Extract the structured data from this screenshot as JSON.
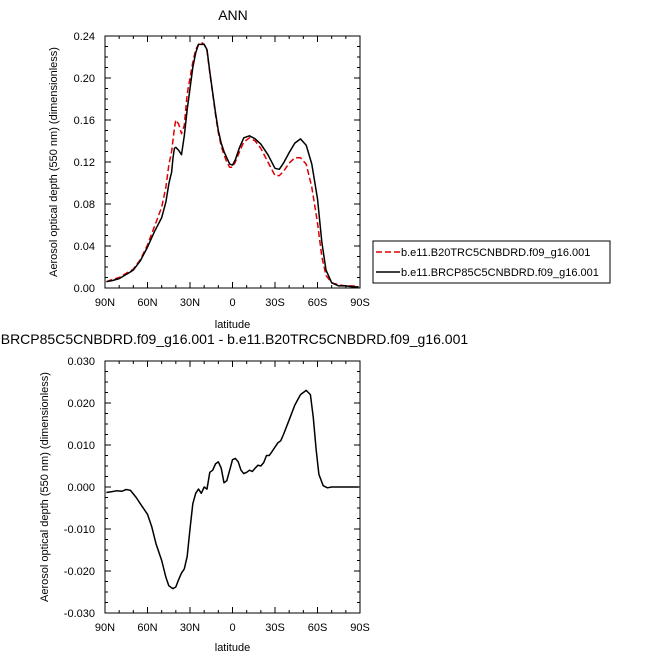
{
  "chart_data": [
    {
      "type": "line",
      "title": "ANN",
      "xlabel": "latitude",
      "ylabel": "Aerosol optical depth (550 nm) (dimensionless)",
      "x_domain": [
        90,
        -90
      ],
      "x_ticks": [
        90,
        60,
        30,
        0,
        -30,
        -60,
        -90
      ],
      "x_tick_labels": [
        "90N",
        "60N",
        "30N",
        "0",
        "30S",
        "60S",
        "90S"
      ],
      "ylim": [
        0,
        0.24
      ],
      "y_ticks": [
        0,
        0.04,
        0.08,
        0.12,
        0.16,
        0.2,
        0.24
      ],
      "y_tick_labels": [
        "0.00",
        "0.04",
        "0.08",
        "0.12",
        "0.16",
        "0.20",
        "0.24"
      ],
      "legend_position": "right",
      "series": [
        {
          "name": "b.e11.B20TRC5CNBDRD.f09_g16.001",
          "color": "#e00000",
          "dash": true,
          "x": [
            89,
            85,
            80,
            75,
            70,
            65,
            60,
            55,
            50,
            47,
            45,
            43,
            42,
            41,
            40,
            38,
            36,
            34,
            32,
            30,
            28,
            26,
            24,
            22,
            20,
            18,
            16,
            14,
            12,
            10,
            8,
            6,
            4,
            2,
            0,
            -2,
            -5,
            -8,
            -12,
            -16,
            -20,
            -25,
            -30,
            -33,
            -36,
            -40,
            -44,
            -48,
            -52,
            -56,
            -60,
            -63,
            -66,
            -70,
            -75,
            -80,
            -85,
            -89
          ],
          "y": [
            0.006,
            0.008,
            0.01,
            0.014,
            0.018,
            0.027,
            0.041,
            0.059,
            0.077,
            0.096,
            0.117,
            0.13,
            0.141,
            0.152,
            0.16,
            0.156,
            0.147,
            0.155,
            0.185,
            0.2,
            0.215,
            0.227,
            0.232,
            0.234,
            0.232,
            0.226,
            0.205,
            0.185,
            0.165,
            0.148,
            0.135,
            0.127,
            0.12,
            0.115,
            0.115,
            0.12,
            0.13,
            0.139,
            0.143,
            0.14,
            0.133,
            0.12,
            0.107,
            0.107,
            0.111,
            0.119,
            0.124,
            0.124,
            0.118,
            0.096,
            0.062,
            0.03,
            0.012,
            0.005,
            0.003,
            0.002,
            0.002,
            0.001
          ]
        },
        {
          "name": "b.e11.BRCP85C5CNBDRD.f09_g16.001",
          "color": "#000000",
          "dash": false,
          "x": [
            89,
            85,
            80,
            75,
            70,
            65,
            60,
            55,
            50,
            47,
            45,
            44,
            43,
            42,
            41,
            40,
            38,
            36,
            34,
            32,
            30,
            28,
            26,
            24,
            22,
            20,
            18,
            16,
            14,
            12,
            10,
            8,
            6,
            4,
            2,
            0,
            -2,
            -5,
            -8,
            -12,
            -16,
            -20,
            -25,
            -30,
            -33,
            -36,
            -40,
            -44,
            -48,
            -52,
            -56,
            -60,
            -63,
            -66,
            -70,
            -75,
            -80,
            -85,
            -89
          ],
          "y": [
            0.006,
            0.007,
            0.009,
            0.013,
            0.017,
            0.026,
            0.039,
            0.054,
            0.067,
            0.082,
            0.099,
            0.105,
            0.11,
            0.124,
            0.133,
            0.134,
            0.131,
            0.127,
            0.145,
            0.17,
            0.19,
            0.21,
            0.224,
            0.232,
            0.232,
            0.232,
            0.227,
            0.206,
            0.186,
            0.167,
            0.15,
            0.138,
            0.13,
            0.124,
            0.118,
            0.117,
            0.122,
            0.134,
            0.143,
            0.145,
            0.142,
            0.137,
            0.127,
            0.114,
            0.113,
            0.119,
            0.129,
            0.138,
            0.142,
            0.136,
            0.118,
            0.085,
            0.044,
            0.017,
            0.005,
            0.002,
            0.002,
            0.001,
            0.001
          ]
        }
      ]
    },
    {
      "type": "line",
      "title": ".BRCP85C5CNBDRD.f09_g16.001 - b.e11.B20TRC5CNBDRD.f09_g16.001",
      "xlabel": "latitude",
      "ylabel": "Aerosol optical depth (550 nm) (dimensionless)",
      "x_domain": [
        90,
        -90
      ],
      "x_ticks": [
        90,
        60,
        30,
        0,
        -30,
        -60,
        -90
      ],
      "x_tick_labels": [
        "90N",
        "60N",
        "30N",
        "0",
        "30S",
        "60S",
        "90S"
      ],
      "ylim": [
        -0.03,
        0.03
      ],
      "y_ticks": [
        -0.03,
        -0.02,
        -0.01,
        0,
        0.01,
        0.02,
        0.03
      ],
      "y_tick_labels": [
        "-0.030",
        "-0.020",
        "-0.010",
        "0.000",
        "0.010",
        "0.020",
        "0.030"
      ],
      "series": [
        {
          "color": "#000000",
          "dash": false,
          "x": [
            89,
            85,
            82,
            78,
            75,
            72,
            68,
            64,
            60,
            57,
            54,
            50,
            47,
            45,
            43,
            42,
            40,
            38,
            36,
            34,
            32,
            30,
            28,
            26,
            24,
            22,
            20,
            18,
            16,
            14,
            12,
            10,
            8,
            6,
            4,
            2,
            0,
            -2,
            -4,
            -6,
            -8,
            -10,
            -12,
            -14,
            -16,
            -18,
            -20,
            -22,
            -24,
            -26,
            -28,
            -30,
            -32,
            -34,
            -36,
            -40,
            -44,
            -48,
            -52,
            -55,
            -57,
            -59,
            -61,
            -64,
            -67,
            -70,
            -75,
            -80,
            -85,
            -89
          ],
          "y": [
            -0.0013,
            -0.0011,
            -0.0009,
            -0.001,
            -0.0006,
            -0.0008,
            -0.0025,
            -0.0045,
            -0.0065,
            -0.0095,
            -0.0135,
            -0.0175,
            -0.0215,
            -0.0235,
            -0.024,
            -0.0242,
            -0.0238,
            -0.022,
            -0.0205,
            -0.0195,
            -0.0165,
            -0.01,
            -0.004,
            -0.0015,
            -0.0005,
            -0.0015,
            0.0,
            -0.0005,
            0.0035,
            0.004,
            0.0055,
            0.006,
            0.0045,
            0.001,
            0.0015,
            0.004,
            0.0065,
            0.0068,
            0.006,
            0.004,
            0.0032,
            0.0035,
            0.004,
            0.0037,
            0.0045,
            0.0052,
            0.005,
            0.0058,
            0.0075,
            0.0075,
            0.0085,
            0.0095,
            0.0105,
            0.011,
            0.0125,
            0.016,
            0.0195,
            0.022,
            0.023,
            0.022,
            0.0165,
            0.009,
            0.003,
            0.0003,
            -0.0002,
            0.0,
            0.0,
            0.0,
            0.0,
            0.0
          ]
        }
      ]
    }
  ]
}
